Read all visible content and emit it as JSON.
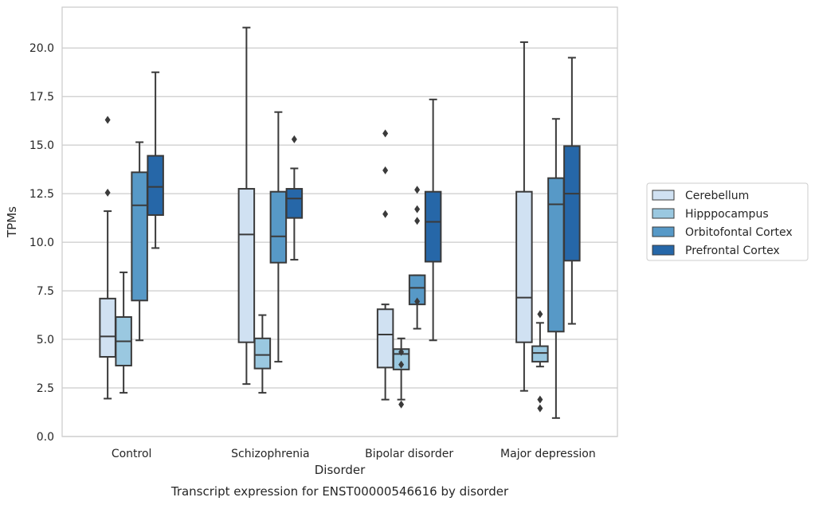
{
  "chart_data": {
    "type": "box",
    "title": "Transcript expression for ENST00000546616 by disorder",
    "xlabel": "Disorder",
    "ylabel": "TPMs",
    "ylim": [
      0,
      22.1
    ],
    "yticks": [
      "0.0",
      "2.5",
      "5.0",
      "7.5",
      "10.0",
      "12.5",
      "15.0",
      "17.5",
      "20.0"
    ],
    "grid": true,
    "legend_position": "right",
    "categories": [
      "Control",
      "Schizophrenia",
      "Bipolar disorder",
      "Major depression"
    ],
    "series": [
      {
        "name": "Cerebellum",
        "color": "#d0e1f2",
        "boxes": [
          {
            "low": 1.95,
            "q1": 4.1,
            "median": 5.15,
            "q3": 7.1,
            "high": 11.6,
            "outliers": [
              12.55,
              16.3
            ]
          },
          {
            "low": 2.7,
            "q1": 4.85,
            "median": 10.4,
            "q3": 12.75,
            "high": 21.05,
            "outliers": []
          },
          {
            "low": 1.9,
            "q1": 3.55,
            "median": 5.25,
            "q3": 6.55,
            "high": 6.8,
            "outliers": [
              11.45,
              13.7,
              15.6
            ]
          },
          {
            "low": 2.35,
            "q1": 4.85,
            "median": 7.15,
            "q3": 12.6,
            "high": 20.3,
            "outliers": []
          }
        ]
      },
      {
        "name": "Hipppocampus",
        "color": "#9ac8e0",
        "boxes": [
          {
            "low": 2.25,
            "q1": 3.65,
            "median": 4.9,
            "q3": 6.15,
            "high": 8.45,
            "outliers": []
          },
          {
            "low": 2.25,
            "q1": 3.5,
            "median": 4.2,
            "q3": 5.05,
            "high": 6.25,
            "outliers": []
          },
          {
            "low": 1.9,
            "q1": 3.45,
            "median": 4.25,
            "q3": 4.5,
            "high": 5.05,
            "outliers": [
              1.65,
              3.7,
              4.35
            ]
          },
          {
            "low": 3.6,
            "q1": 3.85,
            "median": 4.3,
            "q3": 4.65,
            "high": 5.85,
            "outliers": [
              1.45,
              1.9,
              6.3
            ]
          }
        ]
      },
      {
        "name": "Orbitofontal Cortex",
        "color": "#5799c7",
        "boxes": [
          {
            "low": 4.95,
            "q1": 7.0,
            "median": 11.9,
            "q3": 13.6,
            "high": 15.15,
            "outliers": []
          },
          {
            "low": 3.85,
            "q1": 8.95,
            "median": 10.3,
            "q3": 12.6,
            "high": 16.7,
            "outliers": []
          },
          {
            "low": 5.55,
            "q1": 6.8,
            "median": 7.65,
            "q3": 8.3,
            "high": 8.3,
            "outliers": [
              6.95,
              11.1,
              11.7,
              12.7
            ]
          },
          {
            "low": 0.95,
            "q1": 5.4,
            "median": 11.95,
            "q3": 13.3,
            "high": 16.35,
            "outliers": []
          }
        ]
      },
      {
        "name": "Prefrontal Cortex",
        "color": "#2667a8",
        "boxes": [
          {
            "low": 9.7,
            "q1": 11.4,
            "median": 12.85,
            "q3": 14.45,
            "high": 18.75,
            "outliers": []
          },
          {
            "low": 9.1,
            "q1": 11.25,
            "median": 12.25,
            "q3": 12.75,
            "high": 13.8,
            "outliers": [
              15.3
            ]
          },
          {
            "low": 4.95,
            "q1": 9.0,
            "median": 11.05,
            "q3": 12.6,
            "high": 17.35,
            "outliers": []
          },
          {
            "low": 5.8,
            "q1": 9.05,
            "median": 12.5,
            "q3": 14.95,
            "high": 19.5,
            "outliers": []
          }
        ]
      }
    ]
  }
}
